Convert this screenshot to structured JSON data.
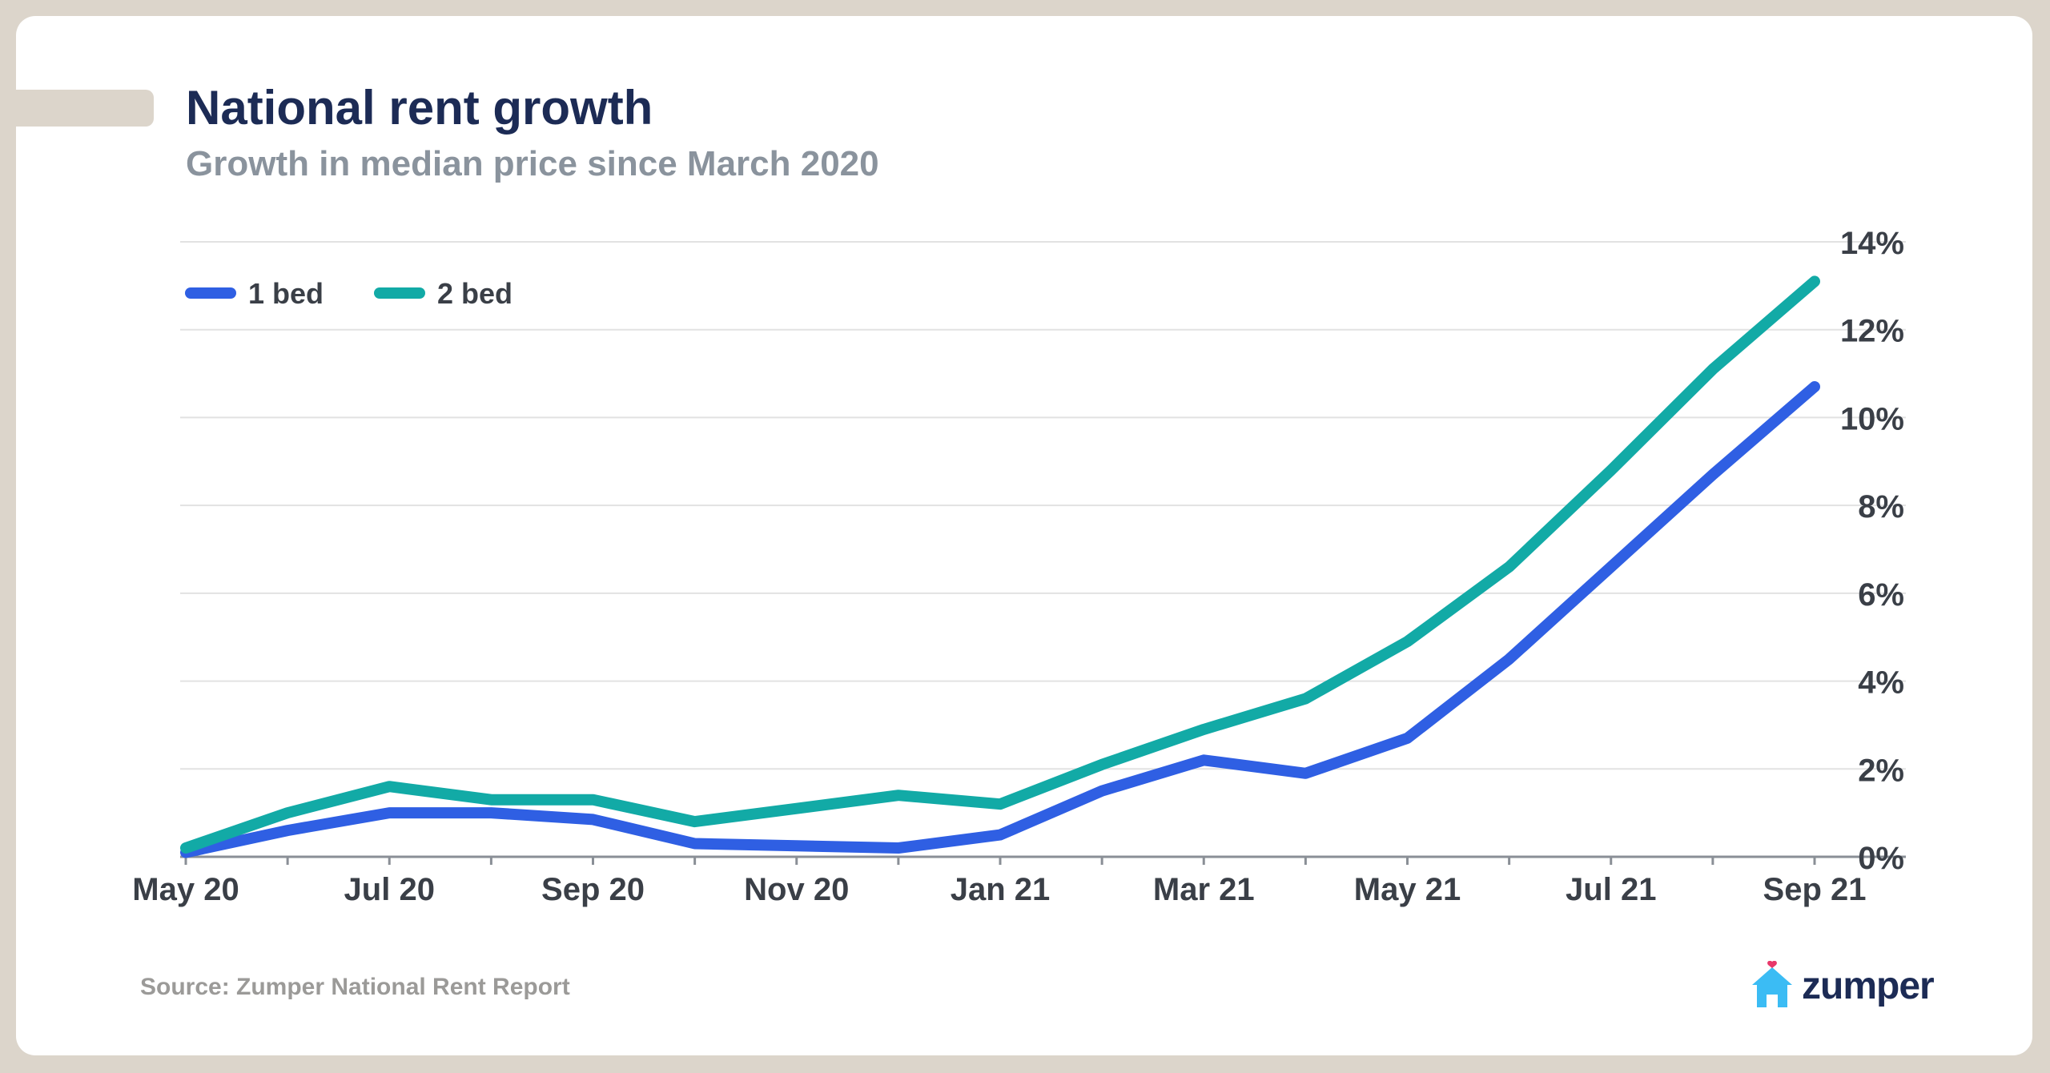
{
  "title": "National rent growth",
  "subtitle": "Growth in median price since March 2020",
  "source": "Source: Zumper National Rent Report",
  "brand": {
    "name": "zumper",
    "icon": "house-heart-icon",
    "icon_color": "#3bbcf4",
    "heart_color": "#e8386b"
  },
  "colors": {
    "one_bed": "#2f5fe3",
    "two_bed": "#12aaa6",
    "title": "#1c2b55",
    "axis": "#3a3f47"
  },
  "chart_data": {
    "type": "line",
    "title": "National rent growth",
    "subtitle": "Growth in median price since March 2020",
    "xlabel": "",
    "ylabel": "",
    "x": [
      "May 20",
      "Jun 20",
      "Jul 20",
      "Aug 20",
      "Sep 20",
      "Oct 20",
      "Nov 20",
      "Dec 20",
      "Jan 21",
      "Feb 21",
      "Mar 21",
      "Apr 21",
      "May 21",
      "Jun 21",
      "Jul 21",
      "Aug 21",
      "Sep 21"
    ],
    "x_tick_labels": [
      "May 20",
      "Jul 20",
      "Sep 20",
      "Nov 20",
      "Jan 21",
      "Mar 21",
      "May 21",
      "Jul 21",
      "Sep 21"
    ],
    "y_ticks": [
      0,
      2,
      4,
      6,
      8,
      10,
      12,
      14
    ],
    "y_tick_labels": [
      "0%",
      "2%",
      "4%",
      "6%",
      "8%",
      "10%",
      "12%",
      "14%"
    ],
    "ylim": [
      0,
      14
    ],
    "grid": true,
    "y_axis_side": "right",
    "legend": "top-left",
    "series": [
      {
        "name": "1 bed",
        "values": [
          0.1,
          0.6,
          1.0,
          1.0,
          0.85,
          0.3,
          0.25,
          0.2,
          0.5,
          1.5,
          2.2,
          1.9,
          2.7,
          4.5,
          6.6,
          8.7,
          10.7
        ]
      },
      {
        "name": "2 bed",
        "values": [
          0.2,
          1.0,
          1.6,
          1.3,
          1.3,
          0.8,
          1.1,
          1.4,
          1.2,
          2.1,
          2.9,
          3.6,
          4.9,
          6.6,
          8.8,
          11.1,
          13.1
        ]
      }
    ]
  }
}
